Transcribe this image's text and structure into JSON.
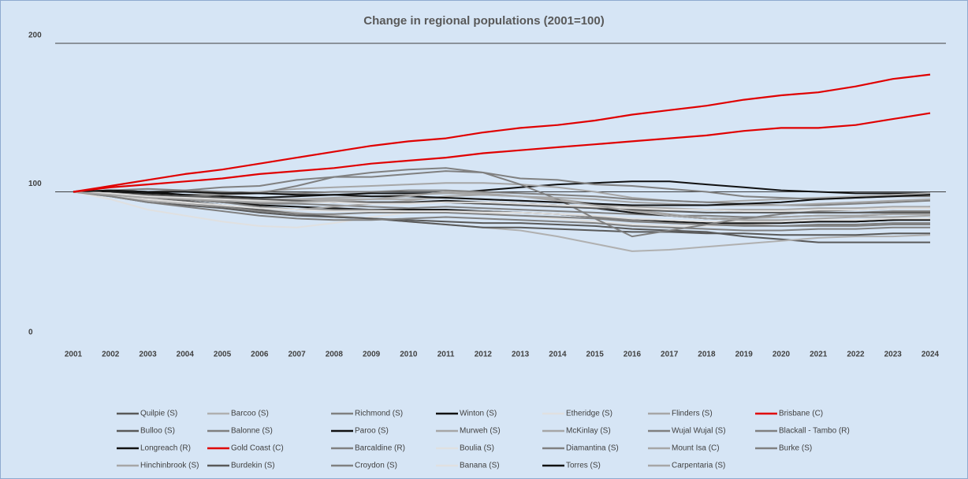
{
  "chart_data": {
    "type": "line",
    "title": "Change in regional populations (2001=100)",
    "categories": [
      "2001",
      "2002",
      "2003",
      "2004",
      "2005",
      "2006",
      "2007",
      "2008",
      "2009",
      "2010",
      "2011",
      "2012",
      "2013",
      "2014",
      "2015",
      "2016",
      "2017",
      "2018",
      "2019",
      "2020",
      "2021",
      "2022",
      "2023",
      "2024"
    ],
    "ylim": [
      0,
      200
    ],
    "yticks": [
      0,
      100,
      200
    ],
    "grid": true,
    "legend": "bottom",
    "series": [
      {
        "name": "Quilpie (S)",
        "color": "#595959",
        "values": [
          100,
          97,
          93,
          91,
          89,
          86,
          84,
          83,
          82,
          81,
          80,
          79,
          79,
          78,
          77,
          75,
          74,
          73,
          70,
          68,
          66,
          66,
          66,
          66
        ]
      },
      {
        "name": "Barcoo (S)",
        "color": "#b0b0b0",
        "values": [
          100,
          97,
          94,
          92,
          90,
          88,
          86,
          84,
          82,
          80,
          78,
          76,
          74,
          70,
          65,
          60,
          61,
          63,
          65,
          67,
          69,
          70,
          70,
          71
        ]
      },
      {
        "name": "Richmond (S)",
        "color": "#808080",
        "values": [
          100,
          99,
          97,
          95,
          93,
          92,
          92,
          91,
          90,
          89,
          90,
          89,
          88,
          87,
          86,
          85,
          84,
          84,
          83,
          83,
          84,
          84,
          85,
          85
        ]
      },
      {
        "name": "Winton (S)",
        "color": "#111111",
        "values": [
          100,
          101,
          100,
          98,
          97,
          96,
          97,
          98,
          99,
          99,
          99,
          101,
          103,
          105,
          106,
          107,
          107,
          105,
          103,
          101,
          100,
          99,
          99,
          99
        ]
      },
      {
        "name": "Etheridge (S)",
        "color": "#e0e0e0",
        "values": [
          100,
          95,
          88,
          84,
          80,
          77,
          76,
          79,
          83,
          86,
          87,
          86,
          84,
          82,
          80,
          78,
          77,
          77,
          78,
          79,
          80,
          80,
          81,
          81
        ]
      },
      {
        "name": "Flinders (S)",
        "color": "#a6a6a6",
        "values": [
          100,
          98,
          97,
          98,
          99,
          100,
          102,
          103,
          104,
          105,
          106,
          106,
          105,
          103,
          100,
          96,
          94,
          93,
          94,
          95,
          96,
          97,
          98,
          99
        ]
      },
      {
        "name": "Brisbane (C)",
        "color": "#e00000",
        "values": [
          100,
          103,
          105,
          107,
          109,
          112,
          114,
          116,
          119,
          121,
          123,
          126,
          128,
          130,
          132,
          134,
          136,
          138,
          141,
          143,
          143,
          145,
          149,
          153
        ]
      },
      {
        "name": "Bulloo (S)",
        "color": "#595959",
        "values": [
          100,
          98,
          96,
          94,
          91,
          88,
          85,
          83,
          82,
          80,
          78,
          76,
          76,
          75,
          74,
          73,
          73,
          72,
          72,
          71,
          71,
          71,
          72,
          72
        ]
      },
      {
        "name": "Balonne (S)",
        "color": "#808080",
        "values": [
          100,
          99,
          98,
          97,
          96,
          95,
          94,
          94,
          93,
          93,
          93,
          92,
          92,
          91,
          90,
          89,
          88,
          88,
          87,
          86,
          86,
          86,
          87,
          87
        ]
      },
      {
        "name": "Paroo (S)",
        "color": "#111111",
        "values": [
          100,
          99,
          97,
          95,
          93,
          91,
          90,
          89,
          88,
          88,
          88,
          87,
          86,
          85,
          83,
          81,
          80,
          79,
          79,
          79,
          80,
          80,
          81,
          82
        ]
      },
      {
        "name": "Murweh (S)",
        "color": "#a6a6a6",
        "values": [
          100,
          99,
          98,
          97,
          96,
          95,
          95,
          95,
          95,
          95,
          96,
          95,
          94,
          93,
          92,
          90,
          89,
          88,
          88,
          88,
          88,
          89,
          89,
          89
        ]
      },
      {
        "name": "McKinlay (S)",
        "color": "#a6a6a6",
        "values": [
          100,
          98,
          95,
          93,
          91,
          89,
          88,
          90,
          92,
          94,
          97,
          98,
          97,
          95,
          92,
          88,
          85,
          82,
          82,
          83,
          84,
          84,
          85,
          85
        ]
      },
      {
        "name": "Wujal Wujal (S)",
        "color": "#808080",
        "values": [
          100,
          101,
          102,
          101,
          100,
          99,
          99,
          100,
          100,
          101,
          101,
          100,
          99,
          98,
          97,
          95,
          94,
          93,
          92,
          91,
          91,
          92,
          93,
          94
        ]
      },
      {
        "name": "Blackall - Tambo (R)",
        "color": "#808080",
        "values": [
          100,
          98,
          95,
          93,
          90,
          87,
          85,
          85,
          86,
          86,
          86,
          85,
          84,
          83,
          82,
          80,
          79,
          78,
          78,
          77,
          77,
          77,
          78,
          78
        ]
      },
      {
        "name": "Longreach (R)",
        "color": "#111111",
        "values": [
          100,
          100,
          99,
          98,
          97,
          95,
          94,
          93,
          93,
          93,
          94,
          93,
          92,
          91,
          89,
          86,
          84,
          82,
          81,
          80,
          80,
          80,
          81,
          81
        ]
      },
      {
        "name": "Gold Coast (C)",
        "color": "#e00000",
        "values": [
          100,
          104,
          108,
          112,
          115,
          119,
          123,
          127,
          131,
          134,
          136,
          140,
          143,
          145,
          148,
          152,
          155,
          158,
          162,
          165,
          167,
          171,
          176,
          179
        ]
      },
      {
        "name": "Barcaldine (R)",
        "color": "#808080",
        "values": [
          100,
          99,
          97,
          95,
          93,
          90,
          88,
          88,
          88,
          87,
          87,
          87,
          86,
          85,
          83,
          81,
          79,
          78,
          77,
          77,
          78,
          78,
          79,
          79
        ]
      },
      {
        "name": "Boulia (S)",
        "color": "#e0e0e0",
        "values": [
          100,
          98,
          95,
          93,
          91,
          89,
          88,
          87,
          87,
          87,
          87,
          86,
          86,
          85,
          84,
          82,
          81,
          80,
          80,
          80,
          81,
          81,
          82,
          82
        ]
      },
      {
        "name": "Diamantina (S)",
        "color": "#808080",
        "values": [
          100,
          98,
          96,
          97,
          98,
          99,
          104,
          110,
          113,
          115,
          116,
          113,
          105,
          95,
          82,
          70,
          74,
          78,
          82,
          85,
          87,
          88,
          89,
          90
        ]
      },
      {
        "name": "Mount Isa (C)",
        "color": "#a6a6a6",
        "values": [
          100,
          99,
          97,
          96,
          95,
          95,
          95,
          96,
          97,
          98,
          99,
          98,
          97,
          96,
          95,
          93,
          92,
          91,
          91,
          91,
          92,
          93,
          94,
          95
        ]
      },
      {
        "name": "Burke (S)",
        "color": "#808080",
        "values": [
          100,
          97,
          93,
          90,
          87,
          84,
          82,
          81,
          81,
          82,
          83,
          82,
          81,
          80,
          79,
          77,
          76,
          75,
          74,
          74,
          75,
          75,
          76,
          76
        ]
      },
      {
        "name": "Hinchinbrook (S)",
        "color": "#a6a6a6",
        "values": [
          100,
          99,
          98,
          97,
          96,
          95,
          94,
          94,
          93,
          93,
          93,
          92,
          91,
          90,
          89,
          88,
          88,
          88,
          88,
          88,
          89,
          89,
          90,
          90
        ]
      },
      {
        "name": "Burdekin (S)",
        "color": "#595959",
        "values": [
          100,
          99,
          98,
          97,
          96,
          95,
          94,
          93,
          93,
          93,
          93,
          92,
          91,
          90,
          89,
          88,
          87,
          86,
          86,
          86,
          86,
          86,
          86,
          86
        ]
      },
      {
        "name": "Croydon (S)",
        "color": "#808080",
        "values": [
          100,
          101,
          100,
          101,
          103,
          104,
          108,
          110,
          110,
          112,
          114,
          113,
          109,
          108,
          105,
          104,
          102,
          100,
          97,
          96,
          95,
          96,
          97,
          97
        ]
      },
      {
        "name": "Banana (S)",
        "color": "#e0e0e0",
        "values": [
          100,
          99,
          97,
          96,
          95,
          94,
          93,
          93,
          92,
          92,
          93,
          93,
          92,
          91,
          90,
          89,
          88,
          88,
          87,
          87,
          88,
          88,
          89,
          89
        ]
      },
      {
        "name": "Torres (S)",
        "color": "#111111",
        "values": [
          100,
          101,
          100,
          100,
          99,
          99,
          98,
          98,
          97,
          97,
          96,
          95,
          94,
          93,
          92,
          91,
          91,
          91,
          92,
          93,
          95,
          96,
          97,
          98
        ]
      },
      {
        "name": "Carpentaria (S)",
        "color": "#a6a6a6",
        "values": [
          100,
          98,
          96,
          95,
          94,
          93,
          93,
          94,
          95,
          97,
          100,
          99,
          97,
          94,
          91,
          87,
          84,
          82,
          81,
          81,
          82,
          83,
          83,
          84
        ]
      }
    ]
  }
}
